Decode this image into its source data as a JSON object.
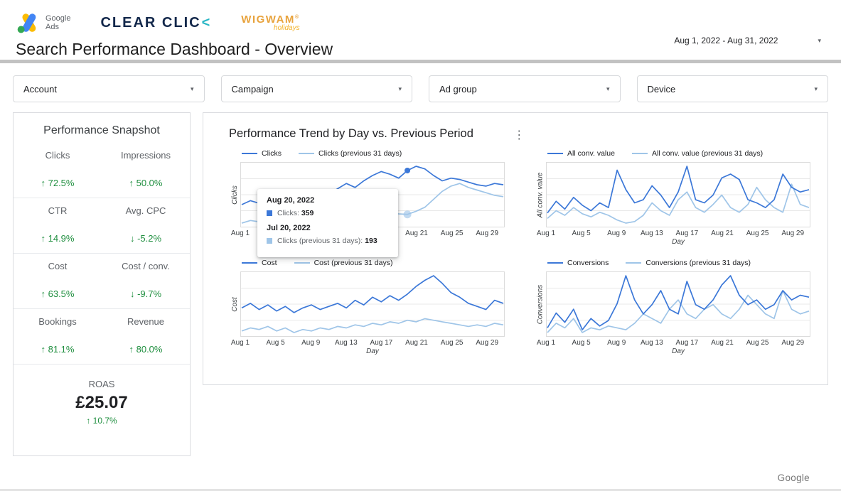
{
  "colors": {
    "primary": "#3c78d8",
    "comparison": "#9fc5e8",
    "positive_green": "#1e8e3e",
    "accent_teal": "#29b6c5"
  },
  "icons": {
    "caret": "▾",
    "kebab": "⋮"
  },
  "header": {
    "logos": {
      "google_line1": "Google",
      "google_line2": "Ads",
      "clear_click": "CLEAR CLIC",
      "clear_click_mark": "<",
      "wigwam": "WIGWAM",
      "wigwam_reg": "®",
      "wigwam_sub": "holidays"
    },
    "title": "Search Performance Dashboard - Overview",
    "date_range": "Aug 1, 2022 - Aug 31, 2022"
  },
  "filters": [
    {
      "label": "Account"
    },
    {
      "label": "Campaign"
    },
    {
      "label": "Ad group"
    },
    {
      "label": "Device"
    }
  ],
  "snapshot": {
    "title": "Performance Snapshot",
    "metrics": [
      {
        "label": "Clicks",
        "value": "↑ 72.5%"
      },
      {
        "label": "Impressions",
        "value": "↑ 50.0%"
      },
      {
        "label": "CTR",
        "value": "↑ 14.9%"
      },
      {
        "label": "Avg. CPC",
        "value": "↓ -5.2%"
      },
      {
        "label": "Cost",
        "value": "↑ 63.5%"
      },
      {
        "label": "Cost / conv.",
        "value": "↓ -9.7%"
      },
      {
        "label": "Bookings",
        "value": "↑ 81.1%"
      },
      {
        "label": "Revenue",
        "value": "↑ 80.0%"
      }
    ],
    "roas": {
      "label": "ROAS",
      "value": "£25.07",
      "change": "↑ 10.7%"
    }
  },
  "trend": {
    "title": "Performance Trend by Day vs. Previous Period",
    "x_axis_label": "Day",
    "x_ticks": [
      "Aug 1",
      "Aug 5",
      "Aug 9",
      "Aug 13",
      "Aug 17",
      "Aug 21",
      "Aug 25",
      "Aug 29"
    ],
    "tick_indices": [
      0,
      4,
      8,
      12,
      16,
      20,
      24,
      28
    ],
    "points": 31,
    "tooltip": {
      "date_current": "Aug 20, 2022",
      "current_label": "Clicks:",
      "current_value": "359",
      "date_previous": "Jul 20, 2022",
      "previous_label": "Clicks (previous 31 days):",
      "previous_value": "193"
    }
  },
  "chart_data": [
    {
      "type": "line",
      "ylabel": "Clicks",
      "xlabel": "Day",
      "x_range": "Aug 1 - Aug 31, 2022",
      "highlight_index": 19,
      "series": [
        {
          "name": "Clicks",
          "values": [
            230,
            245,
            235,
            250,
            240,
            260,
            250,
            245,
            265,
            280,
            270,
            290,
            310,
            295,
            320,
            340,
            355,
            345,
            330,
            359,
            375,
            365,
            340,
            320,
            330,
            325,
            315,
            305,
            300,
            310,
            305
          ]
        },
        {
          "name": "Clicks (previous 31 days)",
          "values": [
            160,
            170,
            165,
            175,
            168,
            180,
            172,
            178,
            170,
            182,
            175,
            188,
            180,
            192,
            185,
            195,
            190,
            198,
            195,
            193,
            205,
            220,
            250,
            280,
            300,
            310,
            295,
            285,
            275,
            265,
            260
          ]
        }
      ]
    },
    {
      "type": "line",
      "ylabel": "All conv. value",
      "xlabel": "Day",
      "x_range": "Aug 1 - Aug 31, 2022",
      "series": [
        {
          "name": "All conv. value",
          "values": [
            45,
            60,
            50,
            65,
            55,
            48,
            58,
            52,
            100,
            75,
            58,
            62,
            80,
            68,
            52,
            72,
            105,
            62,
            58,
            68,
            90,
            95,
            88,
            62,
            58,
            52,
            62,
            95,
            78,
            72,
            75
          ]
        },
        {
          "name": "All conv. value (previous 31 days)",
          "values": [
            38,
            48,
            42,
            52,
            44,
            40,
            46,
            42,
            36,
            32,
            34,
            42,
            58,
            48,
            42,
            62,
            72,
            52,
            46,
            56,
            68,
            52,
            46,
            56,
            78,
            62,
            52,
            46,
            82,
            56,
            52
          ]
        }
      ]
    },
    {
      "type": "line",
      "ylabel": "Cost",
      "xlabel": "Day",
      "x_range": "Aug 1 - Aug 31, 2022",
      "series": [
        {
          "name": "Cost",
          "values": [
            56,
            59,
            55,
            58,
            54,
            57,
            53,
            56,
            58,
            55,
            57,
            59,
            56,
            61,
            58,
            63,
            60,
            64,
            61,
            65,
            70,
            74,
            77,
            72,
            66,
            63,
            59,
            57,
            55,
            61,
            59
          ]
        },
        {
          "name": "Cost (previous 31 days)",
          "values": [
            41,
            43,
            42,
            44,
            41,
            43,
            40,
            42,
            41,
            43,
            42,
            44,
            43,
            45,
            44,
            46,
            45,
            47,
            46,
            48,
            47,
            49,
            48,
            47,
            46,
            45,
            44,
            45,
            44,
            46,
            45
          ]
        }
      ]
    },
    {
      "type": "line",
      "ylabel": "Conversions",
      "xlabel": "Day",
      "x_range": "Aug 1 - Aug 31, 2022",
      "series": [
        {
          "name": "Conversions",
          "values": [
            32,
            48,
            38,
            52,
            30,
            42,
            34,
            40,
            58,
            88,
            62,
            47,
            57,
            72,
            52,
            47,
            82,
            57,
            52,
            62,
            78,
            88,
            67,
            57,
            62,
            52,
            57,
            72,
            62,
            67,
            65
          ]
        },
        {
          "name": "Conversions (previous 31 days)",
          "values": [
            27,
            37,
            32,
            42,
            27,
            32,
            30,
            34,
            32,
            30,
            37,
            47,
            42,
            37,
            52,
            62,
            47,
            42,
            52,
            57,
            47,
            42,
            52,
            67,
            57,
            47,
            42,
            72,
            52,
            47,
            50
          ]
        }
      ]
    }
  ],
  "footer": {
    "brand": "Google"
  }
}
